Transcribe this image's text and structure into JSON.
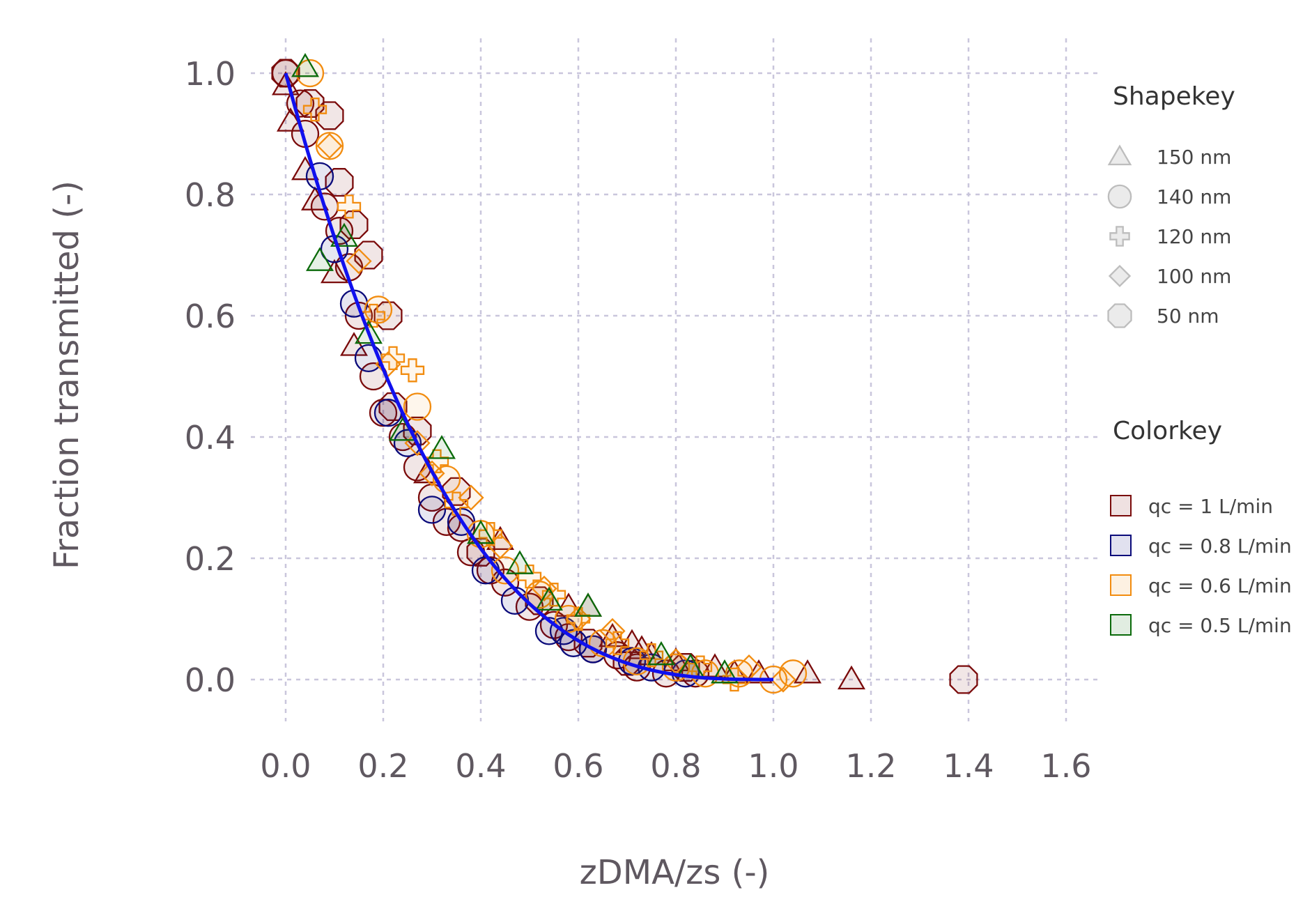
{
  "chart_data": {
    "type": "scatter",
    "title": "",
    "xlabel": "zDMA/zs (-)",
    "ylabel": "Fraction transmitted (-)",
    "xlim": [
      -0.06,
      1.68
    ],
    "ylim": [
      -0.07,
      1.05
    ],
    "x_ticks": [
      "0.0",
      "0.2",
      "0.4",
      "0.6",
      "0.8",
      "1.0",
      "1.2",
      "1.4",
      "1.6"
    ],
    "y_ticks": [
      "0.0",
      "0.2",
      "0.4",
      "0.6",
      "0.8",
      "1.0"
    ],
    "grid": true,
    "grid_style": "dashed",
    "legends": {
      "shape": {
        "title": "Shapekey",
        "position": "right-top",
        "items": [
          {
            "label": "150 nm",
            "shape": "triangle"
          },
          {
            "label": "140 nm",
            "shape": "circle"
          },
          {
            "label": "120 nm",
            "shape": "plus"
          },
          {
            "label": "100 nm",
            "shape": "diamond"
          },
          {
            "label": "50 nm",
            "shape": "octagon"
          }
        ]
      },
      "color": {
        "title": "Colorkey",
        "position": "right-middle",
        "items": [
          {
            "label": "qc = 1 L/min",
            "color": "#7a0a0a"
          },
          {
            "label": "qc = 0.8 L/min",
            "color": "#0a0a7a"
          },
          {
            "label": "qc = 0.6 L/min",
            "color": "#f28c0f"
          },
          {
            "label": "qc = 0.5 L/min",
            "color": "#0a6a0a"
          }
        ]
      }
    },
    "fit_curve": {
      "color": "#1010ee",
      "x_start": 0.0,
      "x_end": 1.0,
      "model": "(1-x)^3"
    },
    "series": [
      {
        "color": "#7a0a0a",
        "shape": "circle",
        "points": [
          [
            0.0,
            1.0
          ],
          [
            0.03,
            0.95
          ],
          [
            0.04,
            0.9
          ],
          [
            0.08,
            0.78
          ],
          [
            0.11,
            0.74
          ],
          [
            0.13,
            0.68
          ],
          [
            0.15,
            0.6
          ],
          [
            0.18,
            0.5
          ],
          [
            0.2,
            0.44
          ],
          [
            0.24,
            0.4
          ],
          [
            0.27,
            0.35
          ],
          [
            0.3,
            0.3
          ],
          [
            0.33,
            0.26
          ],
          [
            0.36,
            0.25
          ],
          [
            0.38,
            0.21
          ],
          [
            0.42,
            0.18
          ],
          [
            0.45,
            0.16
          ],
          [
            0.5,
            0.12
          ],
          [
            0.55,
            0.09
          ],
          [
            0.58,
            0.07
          ],
          [
            0.63,
            0.05
          ],
          [
            0.68,
            0.04
          ],
          [
            0.72,
            0.02
          ],
          [
            0.78,
            0.01
          ],
          [
            0.84,
            0.01
          ]
        ]
      },
      {
        "color": "#7a0a0a",
        "shape": "octagon",
        "points": [
          [
            0.0,
            1.0
          ],
          [
            0.05,
            0.95
          ],
          [
            0.09,
            0.93
          ],
          [
            0.11,
            0.82
          ],
          [
            0.14,
            0.75
          ],
          [
            0.17,
            0.7
          ],
          [
            0.21,
            0.6
          ],
          [
            0.22,
            0.45
          ],
          [
            0.27,
            0.41
          ],
          [
            0.35,
            0.31
          ],
          [
            0.4,
            0.21
          ],
          [
            0.52,
            0.13
          ],
          [
            0.62,
            0.06
          ],
          [
            0.7,
            0.03
          ],
          [
            0.82,
            0.02
          ],
          [
            1.39,
            0.0
          ]
        ]
      },
      {
        "color": "#7a0a0a",
        "shape": "triangle",
        "points": [
          [
            0.0,
            0.98
          ],
          [
            0.01,
            0.92
          ],
          [
            0.04,
            0.84
          ],
          [
            0.06,
            0.79
          ],
          [
            0.1,
            0.67
          ],
          [
            0.14,
            0.55
          ],
          [
            0.29,
            0.34
          ],
          [
            0.44,
            0.23
          ],
          [
            0.58,
            0.12
          ],
          [
            0.62,
            0.12
          ],
          [
            0.67,
            0.07
          ],
          [
            0.71,
            0.06
          ],
          [
            0.73,
            0.05
          ],
          [
            0.75,
            0.04
          ],
          [
            0.8,
            0.03
          ],
          [
            0.88,
            0.02
          ],
          [
            0.92,
            0.01
          ],
          [
            0.97,
            0.01
          ],
          [
            1.07,
            0.01
          ],
          [
            1.16,
            0.0
          ]
        ]
      },
      {
        "color": "#0a0a7a",
        "shape": "circle",
        "points": [
          [
            0.07,
            0.83
          ],
          [
            0.1,
            0.71
          ],
          [
            0.14,
            0.62
          ],
          [
            0.17,
            0.53
          ],
          [
            0.21,
            0.44
          ],
          [
            0.25,
            0.39
          ],
          [
            0.3,
            0.28
          ],
          [
            0.36,
            0.26
          ],
          [
            0.41,
            0.18
          ],
          [
            0.47,
            0.13
          ],
          [
            0.54,
            0.08
          ],
          [
            0.57,
            0.08
          ],
          [
            0.59,
            0.06
          ],
          [
            0.63,
            0.05
          ],
          [
            0.71,
            0.03
          ],
          [
            0.75,
            0.02
          ],
          [
            0.82,
            0.01
          ]
        ]
      },
      {
        "color": "#f28c0f",
        "shape": "circle",
        "points": [
          [
            0.05,
            1.0
          ],
          [
            0.09,
            0.88
          ],
          [
            0.19,
            0.61
          ],
          [
            0.27,
            0.45
          ],
          [
            0.33,
            0.33
          ],
          [
            0.4,
            0.24
          ],
          [
            0.45,
            0.18
          ],
          [
            0.52,
            0.14
          ],
          [
            0.58,
            0.1
          ],
          [
            0.65,
            0.06
          ],
          [
            0.72,
            0.03
          ],
          [
            0.8,
            0.02
          ],
          [
            0.86,
            0.01
          ],
          [
            0.93,
            0.01
          ],
          [
            1.0,
            0.0
          ],
          [
            1.04,
            0.01
          ]
        ]
      },
      {
        "color": "#f28c0f",
        "shape": "plus",
        "points": [
          [
            0.06,
            0.94
          ],
          [
            0.13,
            0.78
          ],
          [
            0.18,
            0.6
          ],
          [
            0.22,
            0.53
          ],
          [
            0.26,
            0.51
          ],
          [
            0.31,
            0.36
          ],
          [
            0.35,
            0.29
          ],
          [
            0.42,
            0.24
          ],
          [
            0.5,
            0.17
          ],
          [
            0.55,
            0.14
          ],
          [
            0.6,
            0.1
          ],
          [
            0.68,
            0.06
          ],
          [
            0.75,
            0.04
          ],
          [
            0.85,
            0.02
          ],
          [
            0.92,
            0.0
          ]
        ]
      },
      {
        "color": "#f28c0f",
        "shape": "diamond",
        "points": [
          [
            0.09,
            0.88
          ],
          [
            0.15,
            0.69
          ],
          [
            0.21,
            0.52
          ],
          [
            0.27,
            0.39
          ],
          [
            0.3,
            0.34
          ],
          [
            0.38,
            0.3
          ],
          [
            0.44,
            0.22
          ],
          [
            0.53,
            0.15
          ],
          [
            0.6,
            0.1
          ],
          [
            0.67,
            0.08
          ],
          [
            0.8,
            0.03
          ],
          [
            0.95,
            0.02
          ],
          [
            1.02,
            0.0
          ]
        ]
      },
      {
        "color": "#0a6a0a",
        "shape": "triangle",
        "points": [
          [
            0.04,
            1.01
          ],
          [
            0.07,
            0.69
          ],
          [
            0.12,
            0.73
          ],
          [
            0.17,
            0.57
          ],
          [
            0.24,
            0.41
          ],
          [
            0.32,
            0.38
          ],
          [
            0.4,
            0.24
          ],
          [
            0.48,
            0.19
          ],
          [
            0.54,
            0.13
          ],
          [
            0.62,
            0.12
          ],
          [
            0.77,
            0.04
          ],
          [
            0.83,
            0.02
          ],
          [
            0.9,
            0.01
          ]
        ]
      }
    ]
  }
}
